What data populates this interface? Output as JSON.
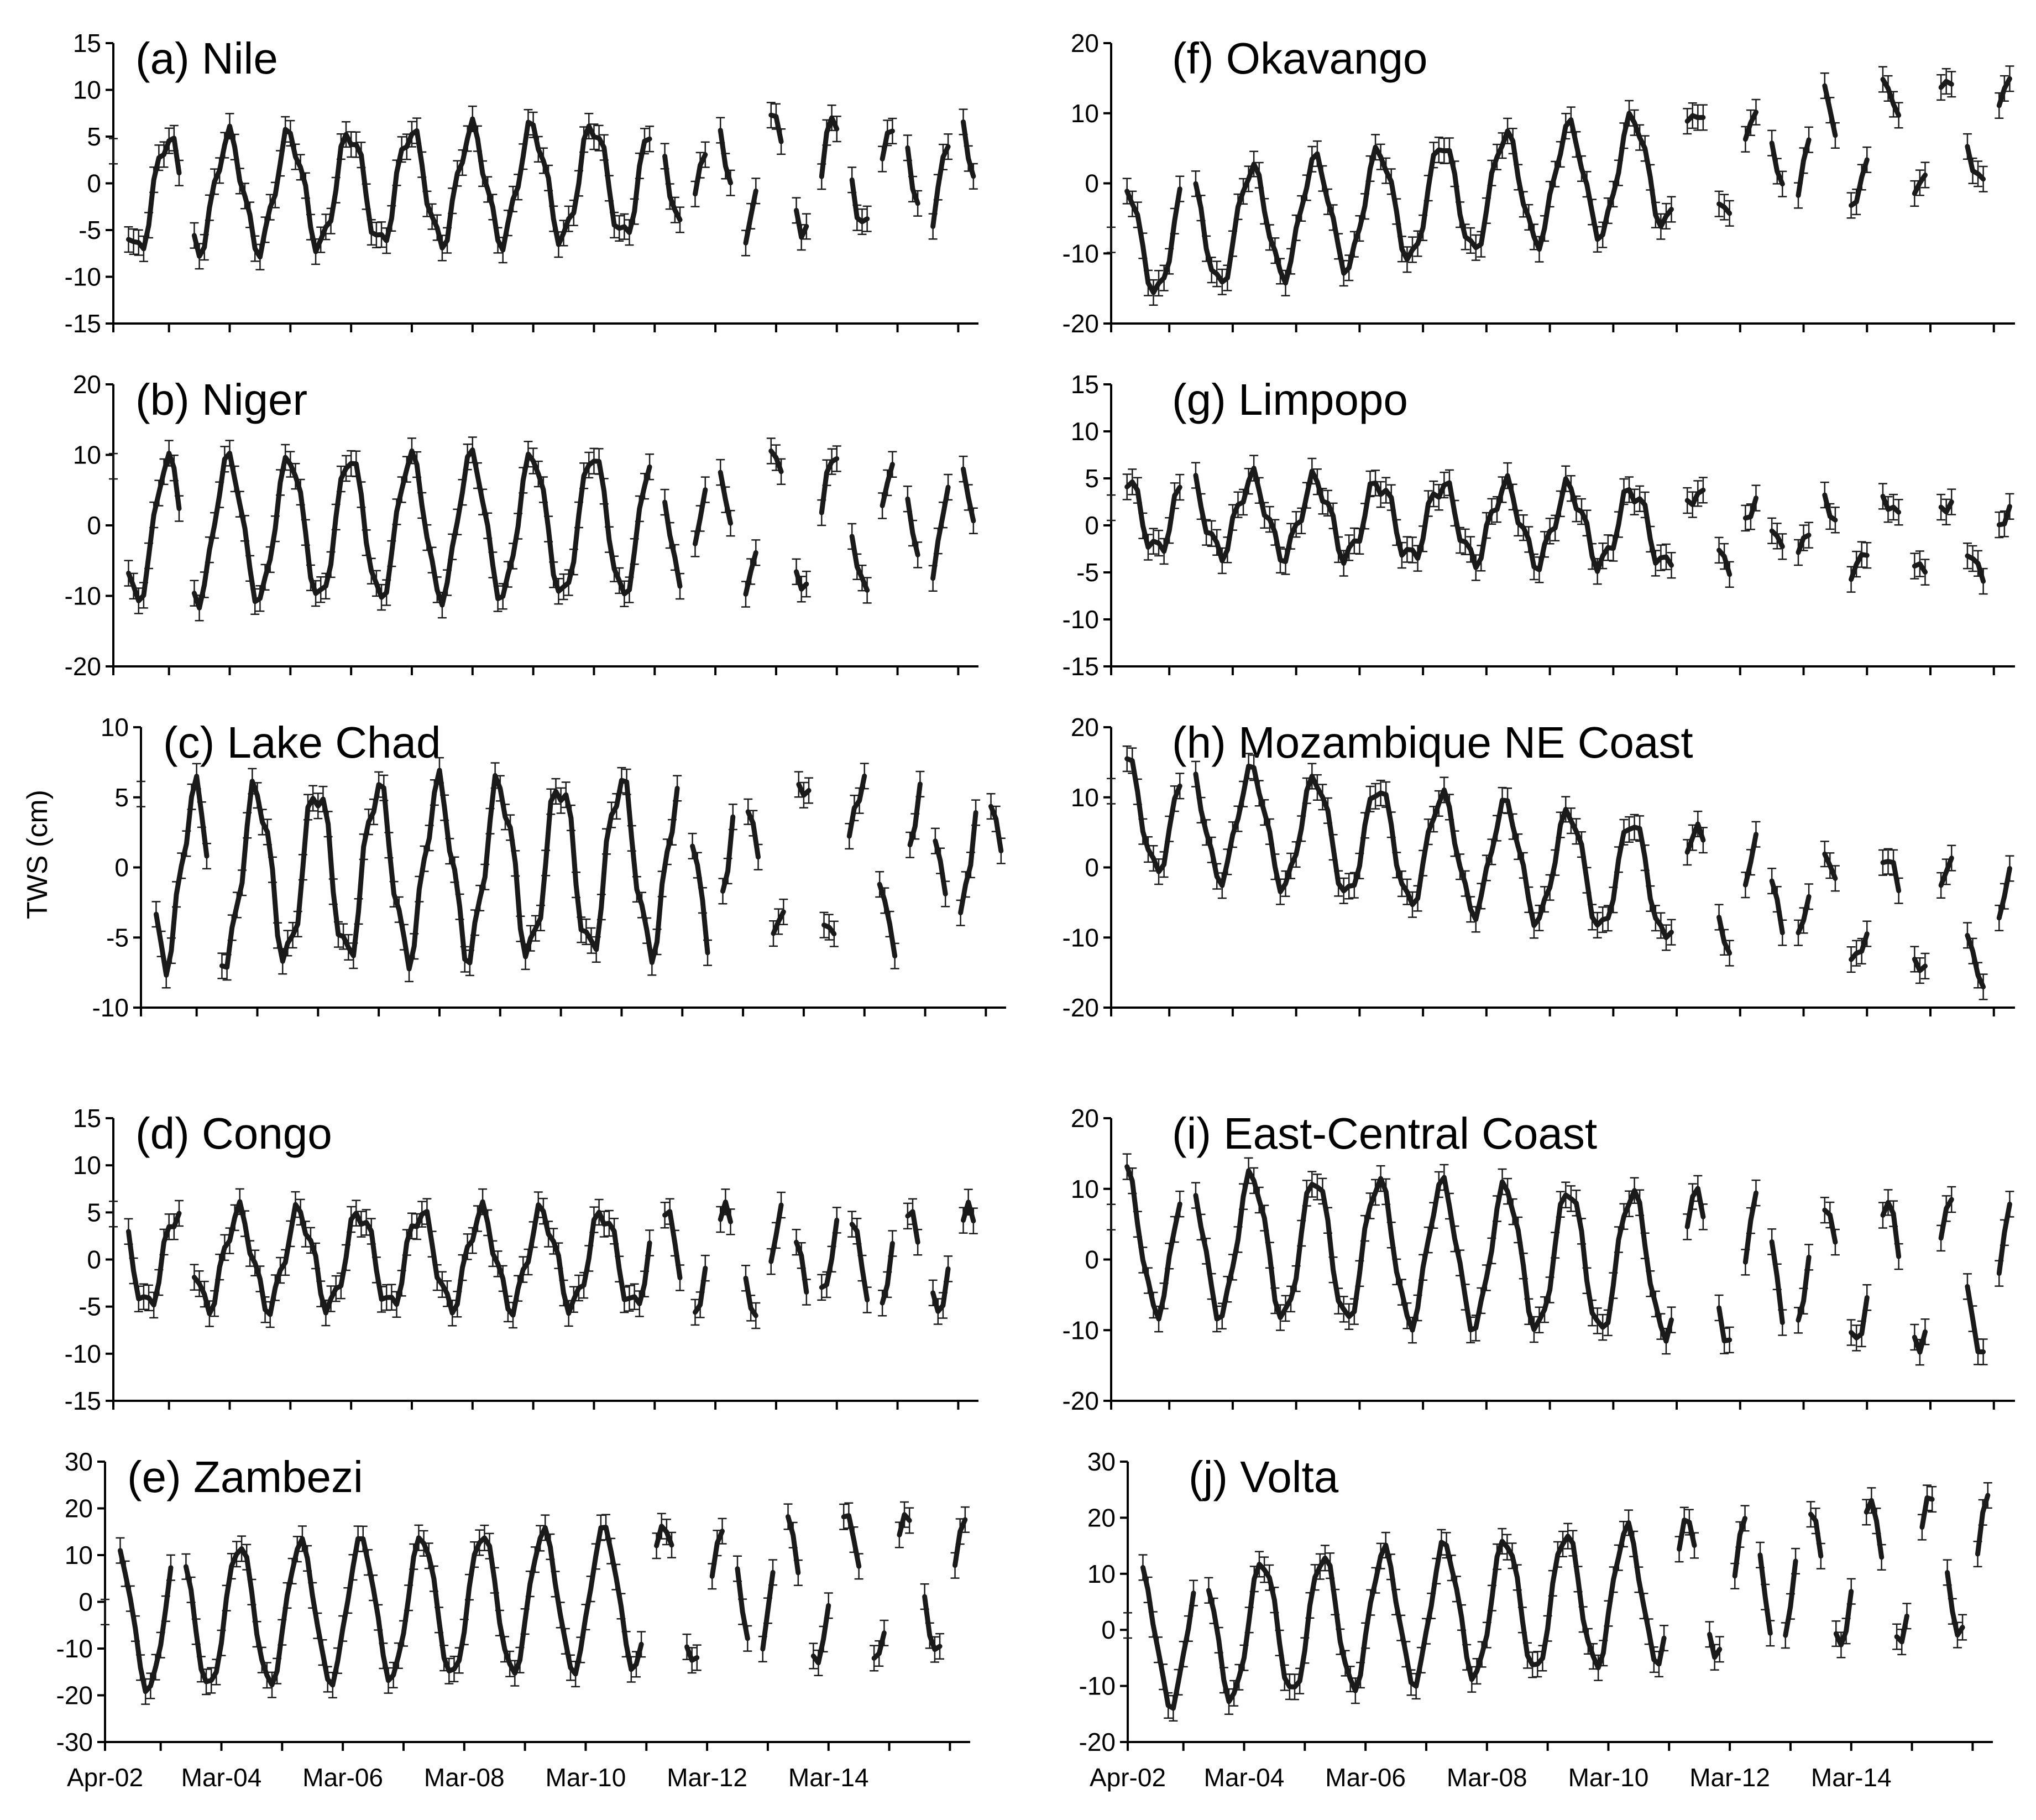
{
  "figure": {
    "ylabel": "TWS (cm)",
    "x_tick_labels": [
      "Apr-02",
      "Mar-04",
      "Mar-06",
      "Mar-08",
      "Mar-10",
      "Mar-12",
      "Mar-14"
    ],
    "line_color": "#1a1a1a"
  },
  "chart_data": [
    {
      "type": "line",
      "title": "(a) Nile",
      "ylabel": "TWS (cm)",
      "ylim": [
        -15,
        15
      ],
      "yticks": [
        -15,
        -10,
        -5,
        0,
        5,
        10,
        15
      ],
      "x_range": [
        "2002-04",
        "2016-07"
      ],
      "x_ticks": [
        "Apr-02",
        "Mar-04",
        "Mar-06",
        "Mar-08",
        "Mar-10",
        "Mar-12",
        "Mar-14"
      ],
      "error_bars": true,
      "series": [
        {
          "amplitude": 6,
          "trend": 0.2,
          "gap_pattern": "grace"
        }
      ]
    },
    {
      "type": "line",
      "title": "(b) Niger",
      "ylim": [
        -20,
        20
      ],
      "yticks": [
        -20,
        -10,
        0,
        10,
        20
      ],
      "x_range": [
        "2002-04",
        "2016-07"
      ],
      "x_ticks": [
        "Apr-02",
        "Mar-04",
        "Mar-06",
        "Mar-08",
        "Mar-10",
        "Mar-12",
        "Mar-14"
      ],
      "error_bars": true,
      "series": [
        {
          "amplitude": 10,
          "trend": 0.1,
          "gap_pattern": "grace"
        }
      ]
    },
    {
      "type": "line",
      "title": "(c) Lake Chad",
      "ylim": [
        -10,
        10
      ],
      "yticks": [
        -10,
        -5,
        0,
        5,
        10
      ],
      "x_range": [
        "2002-04",
        "2016-07"
      ],
      "x_ticks": [
        "Apr-02",
        "Mar-04",
        "Mar-06",
        "Mar-08",
        "Mar-10",
        "Mar-12",
        "Mar-14"
      ],
      "error_bars": true,
      "series": [
        {
          "amplitude": 6,
          "trend": 0.1,
          "gap_pattern": "grace"
        }
      ]
    },
    {
      "type": "line",
      "title": "(d) Congo",
      "ylim": [
        -15,
        15
      ],
      "yticks": [
        -15,
        -10,
        -5,
        0,
        5,
        10,
        15
      ],
      "x_range": [
        "2002-04",
        "2016-07"
      ],
      "x_ticks": [
        "Apr-02",
        "Mar-04",
        "Mar-06",
        "Mar-08",
        "Mar-10",
        "Mar-12",
        "Mar-14"
      ],
      "error_bars": true,
      "series": [
        {
          "amplitude": 5,
          "trend": 0.0,
          "gap_pattern": "grace"
        }
      ]
    },
    {
      "type": "line",
      "title": "(e) Zambezi",
      "ylim": [
        -30,
        30
      ],
      "yticks": [
        -30,
        -20,
        -10,
        0,
        10,
        20,
        30
      ],
      "x_range": [
        "2002-04",
        "2016-07"
      ],
      "x_ticks": [
        "Apr-02",
        "Mar-04",
        "Mar-06",
        "Mar-08",
        "Mar-10",
        "Mar-12",
        "Mar-14"
      ],
      "error_bars": true,
      "series": [
        {
          "amplitude": 15,
          "trend": 0.6,
          "gap_pattern": "grace"
        }
      ]
    },
    {
      "type": "line",
      "title": "(f) Okavango",
      "ylim": [
        -20,
        20
      ],
      "yticks": [
        -20,
        -10,
        0,
        10,
        20
      ],
      "x_range": [
        "2002-04",
        "2016-07"
      ],
      "x_ticks": [
        "Apr-02",
        "Mar-04",
        "Mar-06",
        "Mar-08",
        "Mar-10",
        "Mar-12",
        "Mar-14"
      ],
      "error_bars": true,
      "series": [
        {
          "amplitude": 8,
          "trend": 1.2,
          "gap_pattern": "grace"
        }
      ]
    },
    {
      "type": "line",
      "title": "(g) Limpopo",
      "ylim": [
        -15,
        15
      ],
      "yticks": [
        -15,
        -10,
        -5,
        0,
        5,
        10,
        15
      ],
      "x_range": [
        "2002-04",
        "2016-07"
      ],
      "x_ticks": [
        "Apr-02",
        "Mar-04",
        "Mar-06",
        "Mar-08",
        "Mar-10",
        "Mar-12",
        "Mar-14"
      ],
      "error_bars": true,
      "series": [
        {
          "amplitude": 4,
          "trend": -0.2,
          "gap_pattern": "grace"
        }
      ]
    },
    {
      "type": "line",
      "title": "(h) Mozambique NE Coast",
      "ylim": [
        -20,
        20
      ],
      "yticks": [
        -20,
        -10,
        0,
        10,
        20
      ],
      "x_range": [
        "2002-04",
        "2016-07"
      ],
      "x_ticks": [
        "Apr-02",
        "Mar-04",
        "Mar-06",
        "Mar-08",
        "Mar-10",
        "Mar-12",
        "Mar-14"
      ],
      "error_bars": true,
      "series": [
        {
          "amplitude": 8,
          "trend": -1.2,
          "gap_pattern": "grace"
        }
      ]
    },
    {
      "type": "line",
      "title": "(i) East-Central Coast",
      "ylim": [
        -20,
        20
      ],
      "yticks": [
        -20,
        -10,
        0,
        10,
        20
      ],
      "x_range": [
        "2002-04",
        "2016-07"
      ],
      "x_ticks": [
        "Apr-02",
        "Mar-04",
        "Mar-06",
        "Mar-08",
        "Mar-10",
        "Mar-12",
        "Mar-14"
      ],
      "error_bars": true,
      "series": [
        {
          "amplitude": 10,
          "trend": -0.4,
          "gap_pattern": "grace"
        }
      ]
    },
    {
      "type": "line",
      "title": "(j) Volta",
      "ylim": [
        -20,
        30
      ],
      "yticks": [
        -20,
        -10,
        0,
        10,
        20,
        30
      ],
      "x_range": [
        "2002-04",
        "2016-07"
      ],
      "x_ticks": [
        "Apr-02",
        "Mar-04",
        "Mar-06",
        "Mar-08",
        "Mar-10",
        "Mar-12",
        "Mar-14"
      ],
      "error_bars": true,
      "series": [
        {
          "amplitude": 12,
          "trend": 1.0,
          "gap_pattern": "grace"
        }
      ]
    }
  ]
}
